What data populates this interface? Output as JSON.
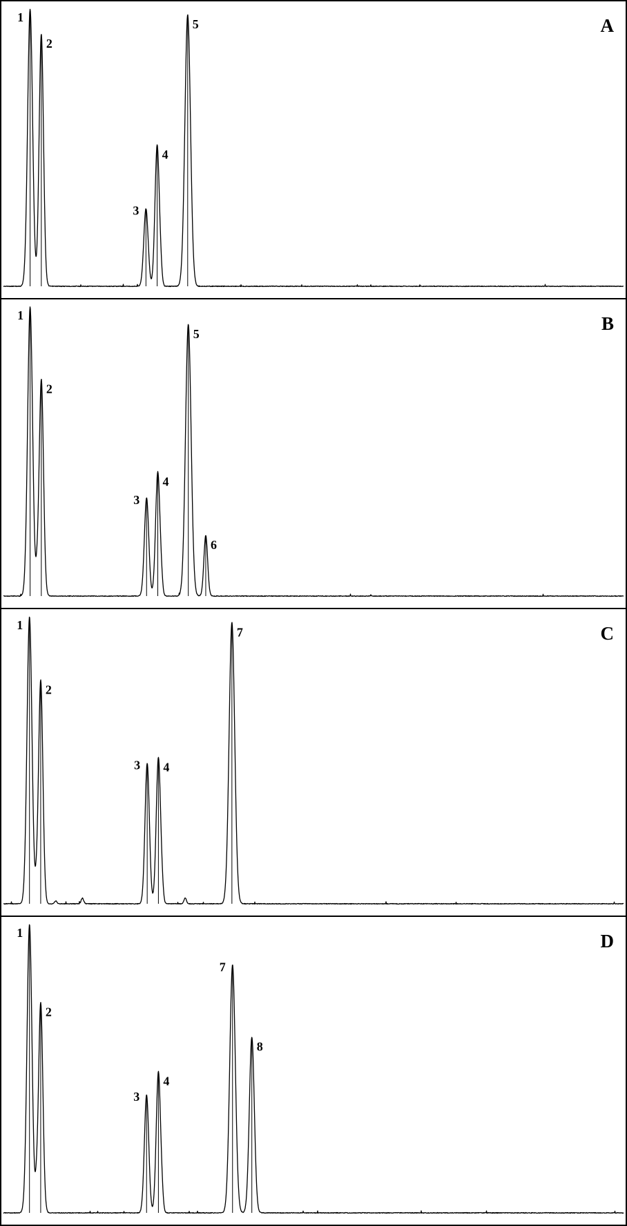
{
  "chart_data": [
    {
      "type": "line",
      "panel": "A",
      "xlabel": "",
      "ylabel": "",
      "xlim": [
        0,
        100
      ],
      "ylim": [
        0,
        100
      ],
      "grid": false,
      "peaks": [
        {
          "label": "1",
          "x": 4.5,
          "height": 100,
          "width": 0.4
        },
        {
          "label": "2",
          "x": 6.3,
          "height": 91,
          "width": 0.35
        },
        {
          "label": "3",
          "x": 23.1,
          "height": 28,
          "width": 0.35
        },
        {
          "label": "4",
          "x": 24.9,
          "height": 51,
          "width": 0.35
        },
        {
          "label": "5",
          "x": 29.8,
          "height": 98,
          "width": 0.45
        }
      ],
      "minor_peaks": [
        {
          "x": 25.5,
          "height": 3,
          "width": 0.2
        }
      ]
    },
    {
      "type": "line",
      "panel": "B",
      "xlabel": "",
      "ylabel": "",
      "xlim": [
        0,
        100
      ],
      "ylim": [
        0,
        100
      ],
      "grid": false,
      "peaks": [
        {
          "label": "1",
          "x": 4.5,
          "height": 100,
          "width": 0.4
        },
        {
          "label": "2",
          "x": 6.3,
          "height": 75,
          "width": 0.35
        },
        {
          "label": "3",
          "x": 23.2,
          "height": 34,
          "width": 0.35
        },
        {
          "label": "4",
          "x": 25.0,
          "height": 43,
          "width": 0.35
        },
        {
          "label": "5",
          "x": 29.9,
          "height": 94,
          "width": 0.45
        },
        {
          "label": "6",
          "x": 32.7,
          "height": 21,
          "width": 0.3
        }
      ],
      "minor_peaks": [
        {
          "x": 5.6,
          "height": 5,
          "width": 0.2
        },
        {
          "x": 25.6,
          "height": 3,
          "width": 0.2
        }
      ]
    },
    {
      "type": "line",
      "panel": "C",
      "xlabel": "",
      "ylabel": "",
      "xlim": [
        0,
        100
      ],
      "ylim": [
        0,
        100
      ],
      "grid": false,
      "peaks": [
        {
          "label": "1",
          "x": 4.4,
          "height": 100,
          "width": 0.4
        },
        {
          "label": "2",
          "x": 6.2,
          "height": 78,
          "width": 0.35
        },
        {
          "label": "3",
          "x": 23.3,
          "height": 49,
          "width": 0.35
        },
        {
          "label": "4",
          "x": 25.1,
          "height": 51,
          "width": 0.35
        },
        {
          "label": "7",
          "x": 36.9,
          "height": 98,
          "width": 0.45
        }
      ],
      "minor_peaks": [
        {
          "x": 5.5,
          "height": 4,
          "width": 0.2
        },
        {
          "x": 8.6,
          "height": 1,
          "width": 0.2
        },
        {
          "x": 12.9,
          "height": 2,
          "width": 0.2
        },
        {
          "x": 25.7,
          "height": 3,
          "width": 0.2
        },
        {
          "x": 29.4,
          "height": 2,
          "width": 0.2
        }
      ]
    },
    {
      "type": "line",
      "panel": "D",
      "xlabel": "",
      "ylabel": "",
      "xlim": [
        0,
        100
      ],
      "ylim": [
        0,
        100
      ],
      "grid": false,
      "peaks": [
        {
          "label": "1",
          "x": 4.4,
          "height": 100,
          "width": 0.4
        },
        {
          "label": "2",
          "x": 6.2,
          "height": 73,
          "width": 0.35
        },
        {
          "label": "3",
          "x": 23.2,
          "height": 41,
          "width": 0.35
        },
        {
          "label": "4",
          "x": 25.1,
          "height": 49,
          "width": 0.35
        },
        {
          "label": "7",
          "x": 37.0,
          "height": 86,
          "width": 0.45
        },
        {
          "label": "8",
          "x": 40.1,
          "height": 61,
          "width": 0.4
        }
      ],
      "minor_peaks": [
        {
          "x": 5.5,
          "height": 6,
          "width": 0.2
        },
        {
          "x": 25.7,
          "height": 3,
          "width": 0.2
        }
      ]
    }
  ]
}
